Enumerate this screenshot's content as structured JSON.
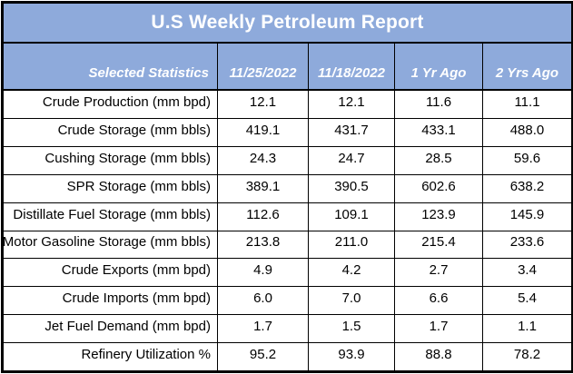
{
  "title": "U.S Weekly Petroleum Report",
  "colors": {
    "header_blue": "#8EAADB",
    "border_black": "#000000",
    "header_text": "#FFFFFF",
    "body_text": "#000000",
    "row_background": "#FFFFFF"
  },
  "chart_data": {
    "type": "table",
    "title": "U.S Weekly Petroleum Report",
    "columns": [
      "Selected Statistics",
      "11/25/2022",
      "11/18/2022",
      "1 Yr Ago",
      "2 Yrs Ago"
    ],
    "rows": [
      {
        "label": "Crude Production (mm bpd)",
        "values": [
          "12.1",
          "12.1",
          "11.6",
          "11.1"
        ]
      },
      {
        "label": "Crude Storage (mm bbls)",
        "values": [
          "419.1",
          "431.7",
          "433.1",
          "488.0"
        ]
      },
      {
        "label": "Cushing Storage (mm bbls)",
        "values": [
          "24.3",
          "24.7",
          "28.5",
          "59.6"
        ]
      },
      {
        "label": "SPR Storage (mm bbls)",
        "values": [
          "389.1",
          "390.5",
          "602.6",
          "638.2"
        ]
      },
      {
        "label": "Distillate Fuel Storage (mm bbls)",
        "values": [
          "112.6",
          "109.1",
          "123.9",
          "145.9"
        ]
      },
      {
        "label": "Motor Gasoline Storage (mm bbls)",
        "values": [
          "213.8",
          "211.0",
          "215.4",
          "233.6"
        ]
      },
      {
        "label": "Crude Exports (mm bpd)",
        "values": [
          "4.9",
          "4.2",
          "2.7",
          "3.4"
        ]
      },
      {
        "label": "Crude Imports (mm bpd)",
        "values": [
          "6.0",
          "7.0",
          "6.6",
          "5.4"
        ]
      },
      {
        "label": "Jet Fuel Demand (mm bpd)",
        "values": [
          "1.7",
          "1.5",
          "1.7",
          "1.1"
        ]
      },
      {
        "label": "Refinery Utilization %",
        "values": [
          "95.2",
          "93.9",
          "88.8",
          "78.2"
        ]
      }
    ]
  }
}
